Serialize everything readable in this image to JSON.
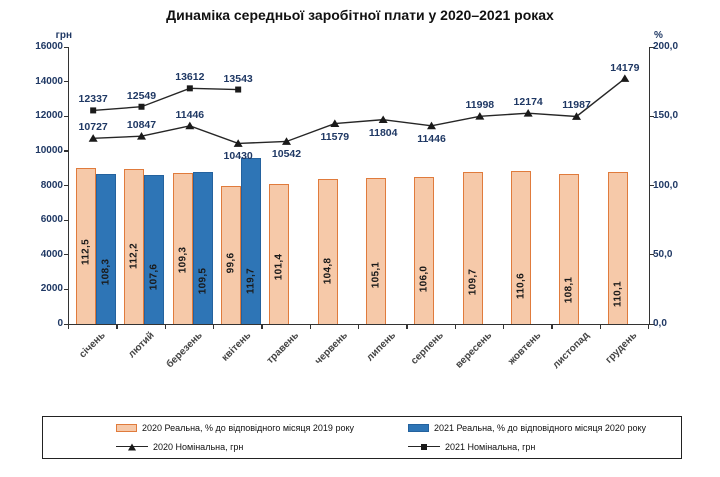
{
  "chart_data": {
    "type": "combo-bar-line",
    "title": "Динаміка середньої заробітної плати у 2020–2021 роках",
    "categories": [
      "січень",
      "лютий",
      "березень",
      "квітень",
      "травень",
      "червень",
      "липень",
      "серпень",
      "вересень",
      "жовтень",
      "листопад",
      "грудень"
    ],
    "left_axis": {
      "title": "грн",
      "min": 0,
      "max": 16000,
      "ticks": [
        "0",
        "2000",
        "4000",
        "6000",
        "8000",
        "10000",
        "12000",
        "14000",
        "16000"
      ]
    },
    "right_axis": {
      "title": "%",
      "min": 0,
      "max": 200,
      "ticks": [
        "0,0",
        "50,0",
        "100,0",
        "150,0",
        "200,0"
      ]
    },
    "grid": false,
    "legend_position": "bottom",
    "bar_series": [
      {
        "name": "2020 Реальна, % до відповідного місяця 2019 року",
        "axis": "right",
        "fill": "#F6C9A9",
        "border": "#E07B3C",
        "values": [
          "112,5",
          "112,2",
          "109,3",
          "99,6",
          "101,4",
          "104,8",
          "105,1",
          "106,0",
          "109,7",
          "110,6",
          "108,1",
          "110,1"
        ]
      },
      {
        "name": "2021 Реальна, % до відповідного місяця 2020 року",
        "axis": "right",
        "fill": "#2E75B6",
        "border": "#24629E",
        "values": [
          "108,3",
          "107,6",
          "109,5",
          "119,7",
          null,
          null,
          null,
          null,
          null,
          null,
          null,
          null
        ]
      }
    ],
    "line_series": [
      {
        "name": "2020 Номінальна, грн",
        "axis": "left",
        "marker": "triangle",
        "color": "#262626",
        "values": [
          10727,
          10847,
          11446,
          10430,
          10542,
          11579,
          11804,
          11446,
          11998,
          12174,
          11987,
          14179
        ],
        "label_below": [
          3,
          4,
          5,
          6,
          7
        ]
      },
      {
        "name": "2021 Номінальна, грн",
        "axis": "left",
        "marker": "square",
        "color": "#262626",
        "values": [
          12337,
          12549,
          13612,
          13543,
          null,
          null,
          null,
          null,
          null,
          null,
          null,
          null
        ],
        "label_below": []
      }
    ]
  }
}
